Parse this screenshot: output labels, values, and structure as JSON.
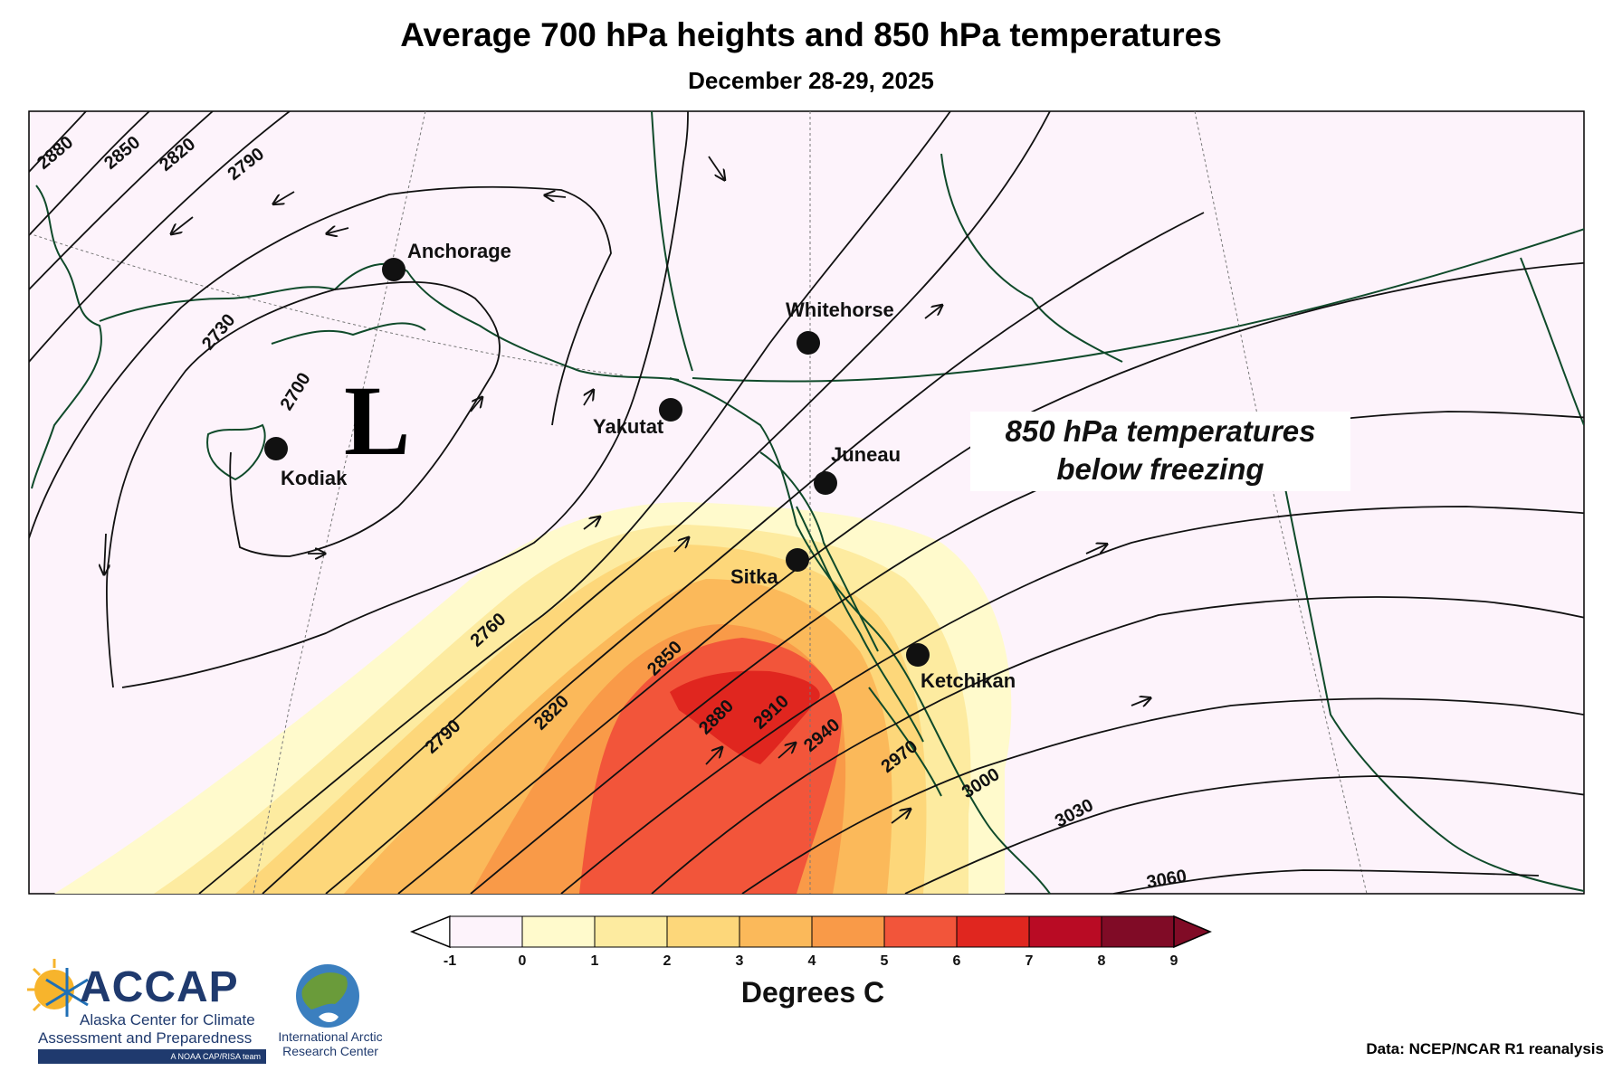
{
  "title": "Average 700 hPa heights and 850 hPa temperatures",
  "subtitle": "December 28-29, 2025",
  "low_marker": "L",
  "annotation": {
    "line1": "850 hPa temperatures",
    "line2": "below freezing"
  },
  "cities": [
    {
      "name": "Anchorage"
    },
    {
      "name": "Kodiak"
    },
    {
      "name": "Yakutat"
    },
    {
      "name": "Whitehorse"
    },
    {
      "name": "Juneau"
    },
    {
      "name": "Sitka"
    },
    {
      "name": "Ketchikan"
    }
  ],
  "contour_labels": [
    "2880",
    "2850",
    "2820",
    "2790",
    "2730",
    "2700",
    "2760",
    "2790",
    "2820",
    "2850",
    "2880",
    "2910",
    "2940",
    "2970",
    "3000",
    "3030",
    "3060"
  ],
  "colorbar": {
    "title": "Degrees C",
    "ticks": [
      "-1",
      "0",
      "1",
      "2",
      "3",
      "4",
      "5",
      "6",
      "7",
      "8",
      "9"
    ],
    "colors": [
      "#fdf3fb",
      "#fffacc",
      "#fdeba0",
      "#fdd77a",
      "#fbb95a",
      "#f99a48",
      "#f2553a",
      "#e0261f",
      "#b90b24",
      "#800b26"
    ],
    "under_color": "#ffffff",
    "over_color": "#800b26"
  },
  "logos": {
    "accap_word": "ACCAP",
    "accap_line1": "Alaska Center for Climate",
    "accap_line2": "Assessment and Preparedness",
    "accap_band": "A NOAA CAP/RISA team",
    "iarc_line1": "International Arctic",
    "iarc_line2": "Research Center"
  },
  "credit": "Data: NCEP/NCAR R1 reanalysis",
  "colors": {
    "map_background": "#fdf3fb",
    "coastline": "#0f4a2a",
    "contour": "#111111"
  }
}
